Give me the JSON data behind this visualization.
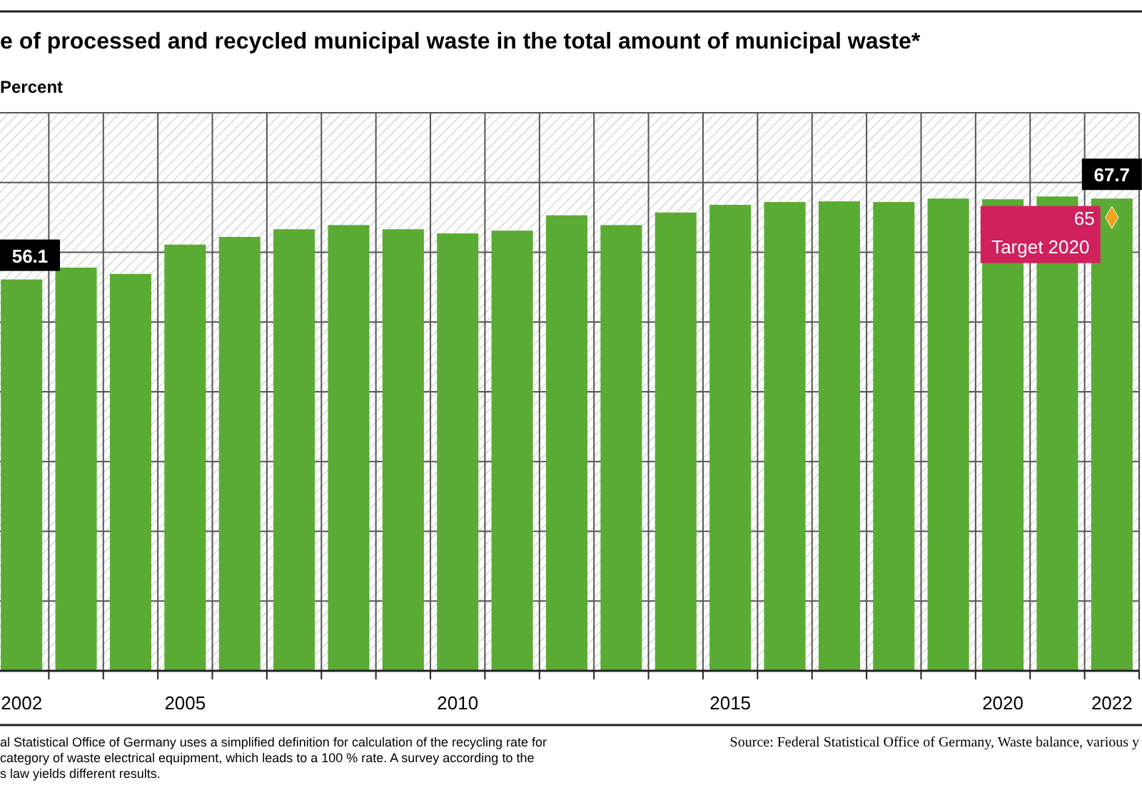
{
  "chart_data": {
    "type": "bar",
    "title": "e of processed and recycled municipal waste in the total amount of municipal waste*",
    "ylabel": "Percent",
    "categories": [
      "2002",
      null,
      null,
      "2005",
      null,
      null,
      null,
      null,
      "2010",
      null,
      null,
      null,
      null,
      "2015",
      null,
      null,
      null,
      null,
      "2020",
      null,
      "2022"
    ],
    "series": [
      {
        "color": "#5aab34",
        "values": [
          56.1,
          57.8,
          56.9,
          61.1,
          62.2,
          63.3,
          63.9,
          63.3,
          62.7,
          63.1,
          65.3,
          63.9,
          65.7,
          66.8,
          67.2,
          67.3,
          67.2,
          67.7,
          67.6,
          68.0,
          67.7
        ],
        "value_labels": [
          "56.1",
          null,
          null,
          null,
          null,
          null,
          null,
          null,
          null,
          null,
          null,
          null,
          null,
          null,
          null,
          null,
          null,
          null,
          null,
          null,
          "67.7"
        ]
      },
      {
        "type": "scatter",
        "name": "Target 2020",
        "color": "#f5a21b",
        "marker": "diamond",
        "values": [
          null,
          null,
          null,
          null,
          null,
          null,
          null,
          null,
          null,
          null,
          null,
          null,
          null,
          null,
          null,
          null,
          null,
          null,
          null,
          null,
          65
        ],
        "value_labels": [
          null,
          null,
          null,
          null,
          null,
          null,
          null,
          null,
          null,
          null,
          null,
          null,
          null,
          null,
          null,
          null,
          null,
          null,
          null,
          null,
          "65"
        ]
      }
    ],
    "ylim": [
      0,
      80
    ],
    "yticks": [
      {
        "value": 0,
        "label": null
      },
      {
        "value": 10,
        "label": null
      },
      {
        "value": 20,
        "label": null
      },
      {
        "value": 30,
        "label": null
      },
      {
        "value": 40,
        "label": null
      },
      {
        "value": 50,
        "label": null
      },
      {
        "value": 60,
        "label": null
      },
      {
        "value": 70,
        "label": null
      },
      {
        "value": 80,
        "label": null
      }
    ],
    "tick_labels": "x",
    "grid": true,
    "annotations": [
      "al Statistical Office of Germany uses a simplified definition for calculation of the recycling rate for",
      "category of waste electrical equipment, which leads to a 100 % rate. A survey according to the",
      "s law yields different results.",
      "Source: Federal Statistical Office of Germany, Waste balance, various y"
    ]
  }
}
